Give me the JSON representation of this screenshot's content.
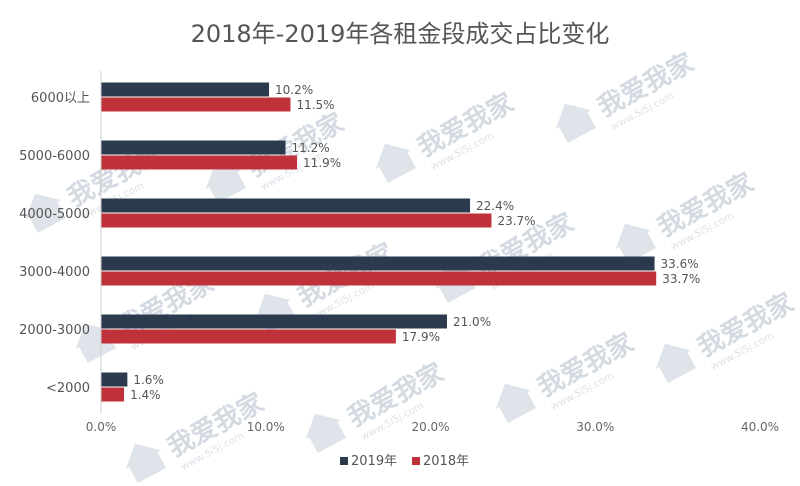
{
  "chart_data": {
    "type": "bar",
    "orientation": "horizontal",
    "title": "2018年-2019年各租金段成交占比变化",
    "categories": [
      "6000以上",
      "5000-6000",
      "4000-5000",
      "3000-4000",
      "2000-3000",
      "<2000"
    ],
    "series": [
      {
        "name": "2019年",
        "color": "#2b3a4d",
        "values": [
          10.2,
          11.2,
          22.4,
          33.6,
          21.0,
          1.6
        ],
        "labels": [
          "10.2%",
          "11.2%",
          "22.4%",
          "33.6%",
          "21.0%",
          "1.6%"
        ]
      },
      {
        "name": "2018年",
        "color": "#c0323a",
        "values": [
          11.5,
          11.9,
          23.7,
          33.7,
          17.9,
          1.4
        ],
        "labels": [
          "11.5%",
          "11.9%",
          "23.7%",
          "33.7%",
          "17.9%",
          "1.4%"
        ]
      }
    ],
    "xlim": [
      0,
      40
    ],
    "xticks": [
      0,
      10,
      20,
      30,
      40
    ],
    "xtick_labels": [
      "0.0%",
      "10.0%",
      "20.0%",
      "30.0%",
      "40.0%"
    ],
    "grid": false,
    "legend_position": "bottom"
  },
  "watermark": {
    "text": "我爱我家",
    "sub": "www.5i5j.com"
  }
}
